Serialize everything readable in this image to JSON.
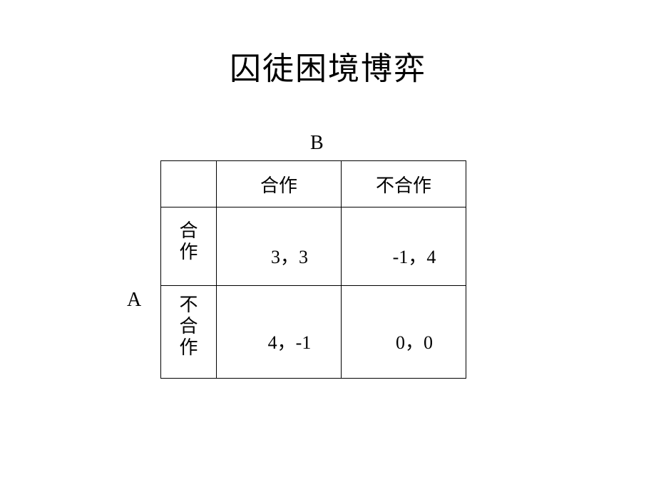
{
  "title": "囚徒困境博弈",
  "players": {
    "row": "A",
    "col": "B"
  },
  "strategies": {
    "cooperate": "合作",
    "defect": "不合作"
  },
  "payoffs": {
    "cc": "3，3",
    "cd": "-1，4",
    "dc": "4，-1",
    "dd": "0，0"
  },
  "style": {
    "background_color": "#ffffff",
    "text_color": "#000000",
    "border_color": "#000000",
    "title_fontsize": 44,
    "cell_fontsize": 26,
    "label_fontsize": 28,
    "font_family_cjk": "SimSun",
    "font_family_latin": "Times New Roman",
    "table_type": "payoff-matrix"
  }
}
